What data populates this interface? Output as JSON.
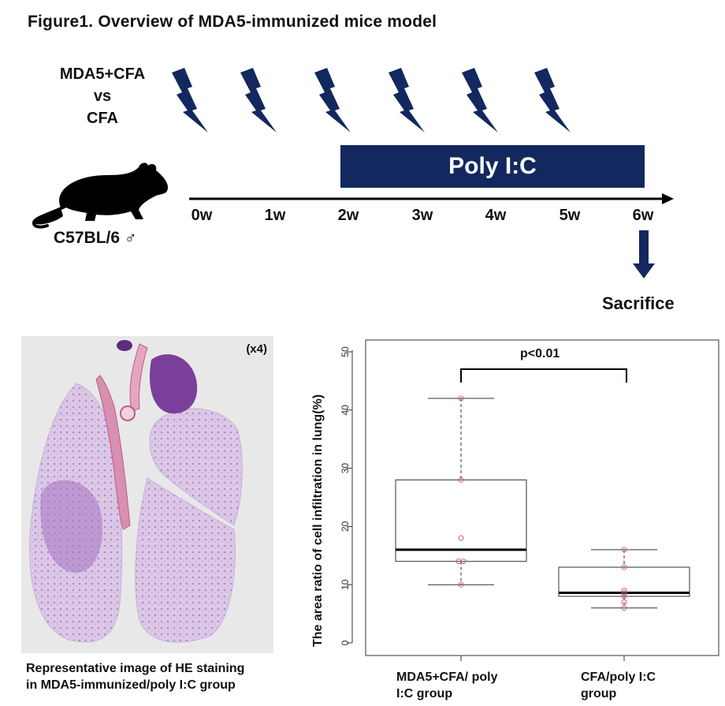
{
  "title": "Figure1. Overview of MDA5-immunized mice model",
  "groups": {
    "line1": "MDA5+CFA",
    "line2": "vs",
    "line3": "CFA"
  },
  "strain": "C57BL/6 ♂",
  "treatment_label": "Poly I:C",
  "weeks": [
    "0w",
    "1w",
    "2w",
    "3w",
    "4w",
    "5w",
    "6w"
  ],
  "endpoint_label": "Sacrifice",
  "histology": {
    "magnification": "(x4)",
    "caption_line1": "Representative image of HE staining",
    "caption_line2": "in MDA5-immunized/poly I:C group"
  },
  "colors": {
    "navy": "#12285e",
    "points": "#d06070",
    "stain": "#8a55a8"
  },
  "icons": [
    "lightning-icon",
    "mouse-icon",
    "down-arrow-icon"
  ],
  "chart_data": {
    "type": "box",
    "ylabel": "The area ratio of cell infiltration in lung(%)",
    "ylim": [
      0,
      50
    ],
    "yticks": [
      0,
      10,
      20,
      30,
      40,
      50
    ],
    "significance": "p<0.01",
    "categories": [
      {
        "label_line1": "MDA5+CFA/ poly",
        "label_line2": "I:C group",
        "min": 10,
        "q1": 14,
        "median": 16,
        "q3": 28,
        "max": 42,
        "points": [
          10,
          14,
          14,
          18,
          28,
          42
        ]
      },
      {
        "label_line1": "CFA/poly I:C",
        "label_line2": "group",
        "min": 6,
        "q1": 8,
        "median": 8.6,
        "q3": 13,
        "max": 16,
        "points": [
          6,
          7,
          8,
          8.6,
          9,
          13,
          16
        ]
      }
    ]
  }
}
